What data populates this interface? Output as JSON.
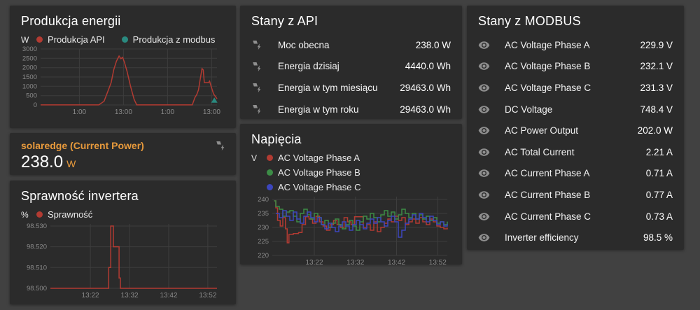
{
  "colors": {
    "page_bg": "#414141",
    "card_bg": "#2b2b2b",
    "accent_orange": "#e89a3c",
    "series_red": "#b23b32",
    "series_teal": "#2a8a80",
    "series_green": "#3c8c46",
    "series_blue": "#3c46be",
    "icon_gray": "#8f8f8f"
  },
  "cards": {
    "produkcja": {
      "title": "Produkcja energii"
    },
    "solaredge": {
      "title": "solaredge (Current Power)",
      "value": "238.0",
      "unit": "W",
      "icon": "solar-flash-icon"
    },
    "sprawnosc": {
      "title": "Sprawność invertera"
    },
    "api": {
      "title": "Stany z API",
      "row_icon": "solar-flash-icon",
      "rows": [
        {
          "name": "Moc obecna",
          "value": "238.0 W"
        },
        {
          "name": "Energia dzisiaj",
          "value": "4440.0 Wh"
        },
        {
          "name": "Energia w tym miesiącu",
          "value": "29463.0 Wh"
        },
        {
          "name": "Energia w tym roku",
          "value": "29463.0 Wh"
        }
      ]
    },
    "napiecia": {
      "title": "Napięcia"
    },
    "modbus": {
      "title": "Stany z MODBUS",
      "row_icon": "eye-icon",
      "rows": [
        {
          "name": "AC Voltage Phase A",
          "value": "229.9 V"
        },
        {
          "name": "AC Voltage Phase B",
          "value": "232.1 V"
        },
        {
          "name": "AC Voltage Phase C",
          "value": "231.3 V"
        },
        {
          "name": "DC Voltage",
          "value": "748.4 V"
        },
        {
          "name": "AC Power Output",
          "value": "202.0 W"
        },
        {
          "name": "AC Total Current",
          "value": "2.21 A"
        },
        {
          "name": "AC Current Phase A",
          "value": "0.71 A"
        },
        {
          "name": "AC Current Phase B",
          "value": "0.77 A"
        },
        {
          "name": "AC Current Phase C",
          "value": "0.73 A"
        },
        {
          "name": "Inverter efficiency",
          "value": "98.5 %"
        }
      ]
    }
  },
  "chart_data": [
    {
      "id": "produkcja",
      "type": "line",
      "title": "Produkcja energii",
      "unit": "W",
      "ylim": [
        0,
        3000
      ],
      "grid": true,
      "legend_position": "top",
      "margin_left": 28,
      "step": false,
      "yticks": [
        {
          "v": 0,
          "label": "0"
        },
        {
          "v": 500,
          "label": "500"
        },
        {
          "v": 1000,
          "label": "1000"
        },
        {
          "v": 1500,
          "label": "1500"
        },
        {
          "v": 2000,
          "label": "2000"
        },
        {
          "v": 2500,
          "label": "2500"
        },
        {
          "v": 3000,
          "label": "3000"
        }
      ],
      "xticks": [
        {
          "pos": 0.22,
          "label": "1:00"
        },
        {
          "pos": 0.47,
          "label": "13:00"
        },
        {
          "pos": 0.72,
          "label": "1:00"
        },
        {
          "pos": 0.97,
          "label": "13:00"
        }
      ],
      "series": [
        {
          "name": "Produkcja API",
          "color": "#b23b32",
          "points": [
            [
              0,
              5
            ],
            [
              0.33,
              5
            ],
            [
              0.36,
              200
            ],
            [
              0.38,
              700
            ],
            [
              0.4,
              1200
            ],
            [
              0.415,
              1900
            ],
            [
              0.43,
              2350
            ],
            [
              0.445,
              2620
            ],
            [
              0.455,
              2480
            ],
            [
              0.465,
              2550
            ],
            [
              0.475,
              2300
            ],
            [
              0.49,
              1800
            ],
            [
              0.51,
              1000
            ],
            [
              0.53,
              300
            ],
            [
              0.545,
              5
            ],
            [
              0.86,
              5
            ],
            [
              0.875,
              400
            ],
            [
              0.885,
              550
            ],
            [
              0.895,
              800
            ],
            [
              0.905,
              1400
            ],
            [
              0.915,
              1950
            ],
            [
              0.922,
              1880
            ],
            [
              0.928,
              1200
            ],
            [
              0.952,
              1200
            ],
            [
              0.958,
              1280
            ],
            [
              0.965,
              1050
            ],
            [
              0.98,
              600
            ],
            [
              1,
              330
            ]
          ]
        },
        {
          "name": "Produkcja z modbus",
          "color": "#2a8a80",
          "marker": "triangle",
          "points": [
            [
              0.985,
              250
            ]
          ]
        }
      ]
    },
    {
      "id": "sprawnosc",
      "type": "line",
      "title": "Sprawność invertera",
      "unit": "%",
      "ylim": [
        98.5,
        98.531
      ],
      "grid": true,
      "legend_position": "top",
      "margin_left": 42,
      "step": true,
      "yticks": [
        {
          "v": 98.5,
          "label": "98.500"
        },
        {
          "v": 98.51,
          "label": "98.510"
        },
        {
          "v": 98.52,
          "label": "98.520"
        },
        {
          "v": 98.53,
          "label": "98.530"
        }
      ],
      "xticks": [
        {
          "pos": 0.24,
          "label": "13:22"
        },
        {
          "pos": 0.475,
          "label": "13:32"
        },
        {
          "pos": 0.71,
          "label": "13:42"
        },
        {
          "pos": 0.945,
          "label": "13:52"
        }
      ],
      "series": [
        {
          "name": "Sprawność",
          "color": "#b23b32",
          "points": [
            [
              0,
              98.5
            ],
            [
              0.345,
              98.5
            ],
            [
              0.35,
              98.51
            ],
            [
              0.36,
              98.51
            ],
            [
              0.362,
              98.53
            ],
            [
              0.375,
              98.53
            ],
            [
              0.378,
              98.52
            ],
            [
              0.408,
              98.52
            ],
            [
              0.412,
              98.505
            ],
            [
              0.42,
              98.5
            ],
            [
              1,
              98.5
            ]
          ]
        }
      ]
    },
    {
      "id": "napiecia",
      "type": "line",
      "title": "Napięcia",
      "unit": "V",
      "ylim": [
        220,
        241
      ],
      "grid": true,
      "legend_position": "top",
      "margin_left": 30,
      "step": true,
      "yticks": [
        {
          "v": 220,
          "label": "220"
        },
        {
          "v": 225,
          "label": "225"
        },
        {
          "v": 230,
          "label": "230"
        },
        {
          "v": 235,
          "label": "235"
        },
        {
          "v": 240,
          "label": "240"
        }
      ],
      "xticks": [
        {
          "pos": 0.24,
          "label": "13:22"
        },
        {
          "pos": 0.475,
          "label": "13:32"
        },
        {
          "pos": 0.71,
          "label": "13:42"
        },
        {
          "pos": 0.945,
          "label": "13:52"
        }
      ],
      "series": [
        {
          "name": "AC Voltage Phase A",
          "color": "#b23b32",
          "points": [
            [
              0.01,
              239.5
            ],
            [
              0.02,
              237
            ],
            [
              0.03,
              232.5
            ],
            [
              0.045,
              230.5
            ],
            [
              0.06,
              233.5
            ],
            [
              0.075,
              229.5
            ],
            [
              0.085,
              224.5
            ],
            [
              0.095,
              227.5
            ],
            [
              0.12,
              227.8
            ],
            [
              0.15,
              228.2
            ],
            [
              0.17,
              231
            ],
            [
              0.19,
              233.8
            ],
            [
              0.21,
              233
            ],
            [
              0.23,
              231.5
            ],
            [
              0.25,
              234
            ],
            [
              0.27,
              232
            ],
            [
              0.29,
              230.5
            ],
            [
              0.31,
              229
            ],
            [
              0.33,
              231
            ],
            [
              0.35,
              232.5
            ],
            [
              0.37,
              231
            ],
            [
              0.39,
              230
            ],
            [
              0.41,
              233.5
            ],
            [
              0.43,
              232
            ],
            [
              0.45,
              231
            ],
            [
              0.47,
              233.8
            ],
            [
              0.5,
              233.8
            ],
            [
              0.52,
              230
            ],
            [
              0.54,
              231
            ],
            [
              0.56,
              229
            ],
            [
              0.58,
              232
            ],
            [
              0.6,
              228.5
            ],
            [
              0.62,
              230
            ],
            [
              0.64,
              231.5
            ],
            [
              0.66,
              233
            ],
            [
              0.68,
              232
            ],
            [
              0.7,
              234
            ],
            [
              0.72,
              232.5
            ],
            [
              0.74,
              233.5
            ],
            [
              0.76,
              231
            ],
            [
              0.78,
              232
            ],
            [
              0.8,
              233
            ],
            [
              0.82,
              231.5
            ],
            [
              0.84,
              233.5
            ],
            [
              0.86,
              232
            ],
            [
              0.88,
              231
            ],
            [
              0.9,
              233
            ],
            [
              0.92,
              232
            ],
            [
              0.94,
              230.5
            ],
            [
              0.96,
              230
            ],
            [
              0.98,
              229.5
            ],
            [
              1,
              229.9
            ]
          ]
        },
        {
          "name": "AC Voltage Phase B",
          "color": "#3c8c46",
          "points": [
            [
              0.01,
              239.5
            ],
            [
              0.02,
              237.5
            ],
            [
              0.04,
              236.5
            ],
            [
              0.06,
              234
            ],
            [
              0.08,
              235.5
            ],
            [
              0.1,
              236
            ],
            [
              0.12,
              234
            ],
            [
              0.14,
              232
            ],
            [
              0.16,
              235
            ],
            [
              0.18,
              236.5
            ],
            [
              0.2,
              234.5
            ],
            [
              0.22,
              233
            ],
            [
              0.24,
              235
            ],
            [
              0.26,
              233.5
            ],
            [
              0.28,
              231
            ],
            [
              0.3,
              232.5
            ],
            [
              0.32,
              230
            ],
            [
              0.34,
              231.5
            ],
            [
              0.36,
              233
            ],
            [
              0.38,
              231
            ],
            [
              0.4,
              229.5
            ],
            [
              0.42,
              231
            ],
            [
              0.44,
              232.5
            ],
            [
              0.46,
              230.5
            ],
            [
              0.48,
              229
            ],
            [
              0.5,
              232
            ],
            [
              0.52,
              234
            ],
            [
              0.54,
              233
            ],
            [
              0.56,
              235
            ],
            [
              0.58,
              233.5
            ],
            [
              0.6,
              232
            ],
            [
              0.62,
              234.5
            ],
            [
              0.64,
              236
            ],
            [
              0.66,
              234
            ],
            [
              0.68,
              235.5
            ],
            [
              0.7,
              233
            ],
            [
              0.72,
              234.5
            ],
            [
              0.74,
              236.5
            ],
            [
              0.76,
              235
            ],
            [
              0.78,
              233.5
            ],
            [
              0.8,
              235
            ],
            [
              0.82,
              233
            ],
            [
              0.84,
              234.5
            ],
            [
              0.86,
              233
            ],
            [
              0.88,
              234
            ],
            [
              0.9,
              232.5
            ],
            [
              0.92,
              233.5
            ],
            [
              0.94,
              231.5
            ],
            [
              0.96,
              232
            ],
            [
              0.98,
              231
            ],
            [
              1,
              232.1
            ]
          ]
        },
        {
          "name": "AC Voltage Phase C",
          "color": "#3c46be",
          "points": [
            [
              0.02,
              235
            ],
            [
              0.04,
              233.5
            ],
            [
              0.06,
              236
            ],
            [
              0.08,
              234
            ],
            [
              0.1,
              232.5
            ],
            [
              0.12,
              235.5
            ],
            [
              0.14,
              233
            ],
            [
              0.16,
              231.5
            ],
            [
              0.18,
              234
            ],
            [
              0.2,
              235.5
            ],
            [
              0.22,
              233.5
            ],
            [
              0.24,
              232
            ],
            [
              0.26,
              233.5
            ],
            [
              0.28,
              231
            ],
            [
              0.3,
              229.5
            ],
            [
              0.32,
              231.5
            ],
            [
              0.34,
              230
            ],
            [
              0.36,
              228.5
            ],
            [
              0.38,
              230.5
            ],
            [
              0.4,
              232
            ],
            [
              0.42,
              230.5
            ],
            [
              0.44,
              229
            ],
            [
              0.46,
              231
            ],
            [
              0.48,
              232.5
            ],
            [
              0.5,
              231
            ],
            [
              0.52,
              229.5
            ],
            [
              0.54,
              231.5
            ],
            [
              0.56,
              233
            ],
            [
              0.58,
              231.5
            ],
            [
              0.6,
              233.5
            ],
            [
              0.62,
              232
            ],
            [
              0.64,
              230.5
            ],
            [
              0.66,
              232.5
            ],
            [
              0.68,
              234
            ],
            [
              0.7,
              232
            ],
            [
              0.72,
              226.5
            ],
            [
              0.74,
              229
            ],
            [
              0.76,
              231.5
            ],
            [
              0.78,
              233
            ],
            [
              0.8,
              234.5
            ],
            [
              0.82,
              233
            ],
            [
              0.84,
              235
            ],
            [
              0.86,
              233.5
            ],
            [
              0.88,
              232
            ],
            [
              0.9,
              234
            ],
            [
              0.92,
              232.5
            ],
            [
              0.94,
              231
            ],
            [
              0.96,
              232
            ],
            [
              0.98,
              230.5
            ],
            [
              1,
              231.3
            ]
          ]
        }
      ]
    }
  ]
}
